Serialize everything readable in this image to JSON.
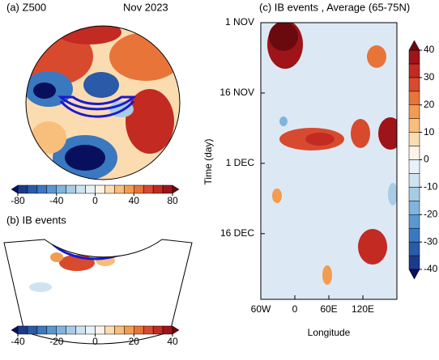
{
  "panels": [
    {
      "title_left": "(a) Z500",
      "title_right": "Nov 2023",
      "colorbar": {
        "lim": [
          -80,
          80
        ],
        "ticks": [
          -80,
          -40,
          0,
          40,
          80
        ]
      }
    },
    {
      "title": "(b) IB events",
      "colorbar": {
        "lim": [
          -40,
          40
        ],
        "ticks": [
          -40,
          -20,
          0,
          20,
          40
        ]
      }
    }
  ],
  "palette": [
    "#08105e",
    "#1a3a8a",
    "#2a5aa8",
    "#3a78c0",
    "#5a98d0",
    "#80b4dc",
    "#a8cce6",
    "#cfe2f0",
    "#e8f1f8",
    "#fdf3e6",
    "#fbdcb0",
    "#f8be7c",
    "#f29c50",
    "#e8743a",
    "#d84a2e",
    "#c22a22",
    "#9e1418",
    "#6a0a0e"
  ],
  "chart_data": {
    "type": "heatmap",
    "title": "(c) IB events , Average (65-75N)",
    "x_label": "Longitude",
    "y_label": "Time (day)",
    "xlim": [
      -60,
      180
    ],
    "xticks": [
      {
        "value": -60,
        "label": "60W"
      },
      0,
      {
        "value": 60,
        "label": "60E"
      },
      {
        "value": 120,
        "label": "120E"
      }
    ],
    "ylim": [
      0,
      59
    ],
    "yticks": [
      {
        "value": 0,
        "label": "1 NOV"
      },
      {
        "value": 15,
        "label": "16 NOV"
      },
      {
        "value": 30,
        "label": "1 DEC"
      },
      {
        "value": 45,
        "label": "16 DEC"
      }
    ],
    "colorbar": {
      "lim": [
        -40,
        40
      ],
      "ticks": [
        -40,
        -30,
        -20,
        -10,
        0,
        10,
        20,
        30,
        40
      ]
    }
  }
}
